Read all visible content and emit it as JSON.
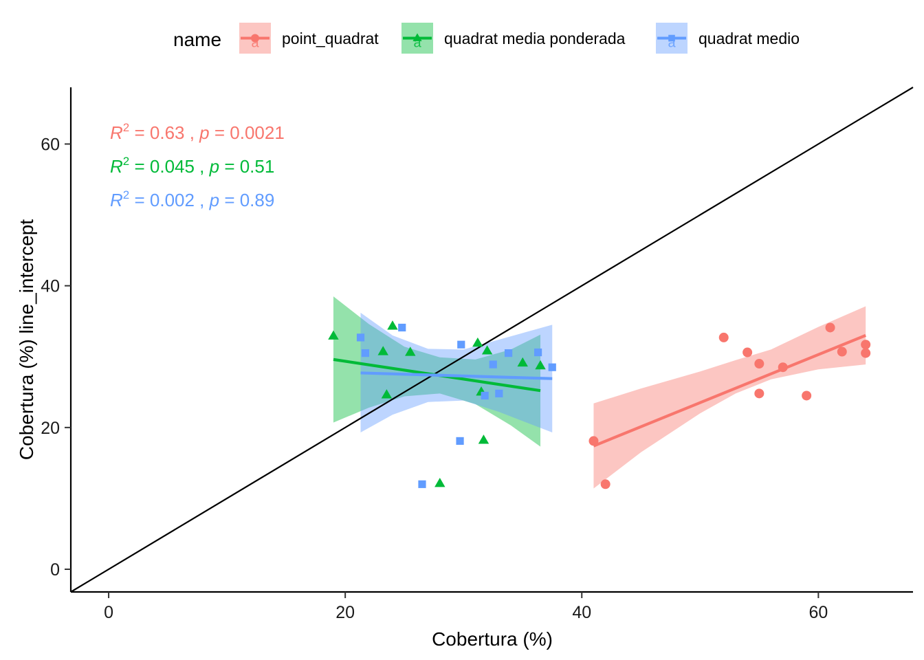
{
  "chart_data": {
    "type": "scatter",
    "xlabel": "Cobertura (%)",
    "ylabel": "Cobertura (%) line_intercept",
    "xlim": [
      -3.2,
      68
    ],
    "ylim": [
      -3.2,
      68
    ],
    "x_ticks": [
      0,
      20,
      40,
      60
    ],
    "y_ticks": [
      0,
      20,
      40,
      60
    ],
    "x_tick_labels": [
      "0",
      "20",
      "40",
      "60"
    ],
    "y_tick_labels": [
      "0",
      "20",
      "40",
      "60"
    ],
    "grid": false,
    "reference_line": "y = x",
    "legend": {
      "title": "name",
      "position": "top",
      "key_letter": "a"
    },
    "series": [
      {
        "name": "point_quadrat",
        "color": "#F8766D",
        "marker": "circle",
        "points": [
          {
            "x": 41,
            "y": 18.1
          },
          {
            "x": 42,
            "y": 12.0
          },
          {
            "x": 52,
            "y": 32.7
          },
          {
            "x": 54,
            "y": 30.6
          },
          {
            "x": 55,
            "y": 29.0
          },
          {
            "x": 55,
            "y": 24.8
          },
          {
            "x": 57,
            "y": 28.5
          },
          {
            "x": 59,
            "y": 24.5
          },
          {
            "x": 61,
            "y": 34.1
          },
          {
            "x": 62,
            "y": 30.7
          },
          {
            "x": 64,
            "y": 31.7
          },
          {
            "x": 64,
            "y": 30.5
          }
        ],
        "fit": {
          "x_range": [
            41,
            64
          ],
          "y_at_range": [
            17.4,
            33.0
          ]
        },
        "ci_band": [
          {
            "x": 41,
            "lower": 11.4,
            "upper": 23.4
          },
          {
            "x": 45,
            "lower": 16.5,
            "upper": 25.5
          },
          {
            "x": 50,
            "lower": 22.0,
            "upper": 27.9
          },
          {
            "x": 53,
            "lower": 24.8,
            "upper": 29.5
          },
          {
            "x": 56,
            "lower": 26.8,
            "upper": 31.0
          },
          {
            "x": 60,
            "lower": 28.2,
            "upper": 34.2
          },
          {
            "x": 64,
            "lower": 28.9,
            "upper": 37.1
          }
        ],
        "annotation": {
          "r2": "0.63",
          "p": "0.0021"
        }
      },
      {
        "name": "quadrat media ponderada",
        "color": "#00BA38",
        "marker": "triangle",
        "points": [
          {
            "x": 19,
            "y": 32.9
          },
          {
            "x": 23.2,
            "y": 30.7
          },
          {
            "x": 23.5,
            "y": 24.6
          },
          {
            "x": 24,
            "y": 34.3
          },
          {
            "x": 25.5,
            "y": 30.6
          },
          {
            "x": 28,
            "y": 12.1
          },
          {
            "x": 31.2,
            "y": 31.9
          },
          {
            "x": 31.5,
            "y": 25.0
          },
          {
            "x": 31.7,
            "y": 18.2
          },
          {
            "x": 32,
            "y": 30.8
          },
          {
            "x": 35,
            "y": 29.1
          },
          {
            "x": 36.5,
            "y": 28.7
          }
        ],
        "fit": {
          "x_range": [
            19,
            36.5
          ],
          "y_at_range": [
            29.6,
            25.2
          ]
        },
        "ci_band": [
          {
            "x": 19,
            "lower": 20.7,
            "upper": 38.5
          },
          {
            "x": 22,
            "lower": 22.8,
            "upper": 34.6
          },
          {
            "x": 25,
            "lower": 24.4,
            "upper": 31.4
          },
          {
            "x": 28,
            "lower": 24.8,
            "upper": 29.9
          },
          {
            "x": 31,
            "lower": 23.3,
            "upper": 29.6
          },
          {
            "x": 34,
            "lower": 20.3,
            "upper": 31.0
          },
          {
            "x": 36.5,
            "lower": 17.3,
            "upper": 33.1
          }
        ],
        "annotation": {
          "r2": "0.045",
          "p": "0.51"
        }
      },
      {
        "name": "quadrat medio",
        "color": "#619CFF",
        "marker": "square",
        "points": [
          {
            "x": 21.3,
            "y": 32.7
          },
          {
            "x": 21.7,
            "y": 30.5
          },
          {
            "x": 24.8,
            "y": 34.1
          },
          {
            "x": 26.5,
            "y": 12.0
          },
          {
            "x": 29.7,
            "y": 18.1
          },
          {
            "x": 29.8,
            "y": 31.7
          },
          {
            "x": 31.8,
            "y": 24.5
          },
          {
            "x": 32.5,
            "y": 28.9
          },
          {
            "x": 33,
            "y": 24.8
          },
          {
            "x": 33.8,
            "y": 30.5
          },
          {
            "x": 36.3,
            "y": 30.6
          },
          {
            "x": 37.5,
            "y": 28.5
          }
        ],
        "fit": {
          "x_range": [
            21.3,
            37.5
          ],
          "y_at_range": [
            27.7,
            26.9
          ]
        },
        "ci_band": [
          {
            "x": 21.3,
            "lower": 19.3,
            "upper": 36.2
          },
          {
            "x": 24,
            "lower": 21.8,
            "upper": 33.0
          },
          {
            "x": 27,
            "lower": 23.6,
            "upper": 31.1
          },
          {
            "x": 30,
            "lower": 23.8,
            "upper": 31.0
          },
          {
            "x": 33,
            "lower": 22.2,
            "upper": 32.4
          },
          {
            "x": 37.5,
            "lower": 19.3,
            "upper": 34.5
          }
        ],
        "annotation": {
          "r2": "0.002",
          "p": "0.89"
        }
      }
    ],
    "annotation_labels": {
      "r": "R",
      "r_sup": "2",
      "p": "p",
      "equals": " = ",
      "separator": " , "
    }
  }
}
